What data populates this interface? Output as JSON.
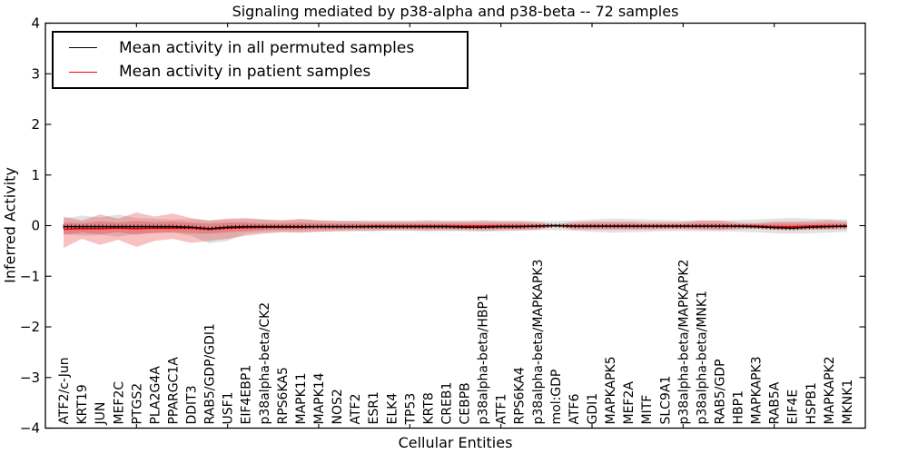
{
  "title": "Signaling mediated by p38-alpha and p38-beta -- 72 samples",
  "xlabel": "Cellular Entities",
  "ylabel": "Inferred Activity",
  "legend": [
    {
      "label": "Mean activity in all permuted samples",
      "color": "#000000"
    },
    {
      "label": "Mean activity in patient samples",
      "color": "#ff0000"
    }
  ],
  "colors": {
    "background": "#ffffff",
    "frame": "#000000",
    "permuted_line": "#000000",
    "patient_line": "#ff0000",
    "permuted_band": "#aaaaaa",
    "patient_band": "#e41a1c"
  },
  "chart_data": {
    "type": "line",
    "title": "Signaling mediated by p38-alpha and p38-beta -- 72 samples",
    "xlabel": "Cellular Entities",
    "ylabel": "Inferred Activity",
    "ylim": [
      -4,
      4
    ],
    "xlim": [
      0,
      45
    ],
    "yticks": [
      4,
      3,
      2,
      1,
      0,
      -1,
      -2,
      -3,
      -4
    ],
    "xtick_step": 5,
    "grid": false,
    "legend_position": "upper left",
    "categories": [
      "ATF2/c-Jun",
      "KRT19",
      "JUN",
      "MEF2C",
      "PTGS2",
      "PLA2G4A",
      "PPARGC1A",
      "DDIT3",
      "RAB5/GDP/GDI1",
      "USF1",
      "EIF4EBP1",
      "p38alpha-beta/CK2",
      "RPS6KA5",
      "MAPK11",
      "MAPK14",
      "NOS2",
      "ATF2",
      "ESR1",
      "ELK4",
      "TP53",
      "KRT8",
      "CREB1",
      "CEBPB",
      "p38alpha-beta/HBP1",
      "ATF1",
      "RPS6KA4",
      "p38alpha-beta/MAPKAPK3",
      "mol:GDP",
      "ATF6",
      "GDI1",
      "MAPKAPK5",
      "MEF2A",
      "MITF",
      "SLC9A1",
      "p38alpha-beta/MAPKAPK2",
      "p38alpha-beta/MNK1",
      "RAB5/GDP",
      "HBP1",
      "MAPKAPK3",
      "RAB5A",
      "EIF4E",
      "HSPB1",
      "MAPKAPK2",
      "MKNK1"
    ],
    "series": [
      {
        "name": "Mean activity in all permuted samples",
        "color": "#000000",
        "style": "solid_with_tick_markers",
        "values": [
          -0.02,
          -0.02,
          -0.02,
          -0.02,
          -0.02,
          -0.02,
          -0.02,
          -0.03,
          -0.06,
          -0.03,
          -0.02,
          -0.02,
          -0.02,
          -0.02,
          -0.02,
          -0.02,
          -0.02,
          -0.02,
          -0.02,
          -0.02,
          -0.02,
          -0.02,
          -0.03,
          -0.03,
          -0.02,
          -0.02,
          -0.01,
          0.0,
          -0.01,
          -0.01,
          -0.01,
          -0.01,
          -0.01,
          -0.01,
          -0.01,
          -0.01,
          -0.01,
          -0.01,
          -0.02,
          -0.04,
          -0.05,
          -0.03,
          -0.02,
          -0.01
        ]
      },
      {
        "name": "Mean activity in patient samples",
        "color": "#ff0000",
        "style": "solid",
        "values": [
          -0.07,
          -0.06,
          -0.06,
          -0.05,
          -0.06,
          -0.05,
          -0.05,
          -0.05,
          -0.07,
          -0.05,
          -0.04,
          -0.03,
          -0.03,
          -0.03,
          -0.02,
          -0.02,
          -0.02,
          -0.01,
          -0.01,
          -0.01,
          -0.01,
          -0.01,
          -0.01,
          -0.01,
          -0.01,
          -0.01,
          -0.01,
          0.0,
          -0.01,
          -0.01,
          -0.01,
          -0.01,
          -0.01,
          -0.01,
          -0.01,
          -0.01,
          -0.01,
          -0.01,
          -0.01,
          -0.02,
          -0.02,
          -0.01,
          -0.01,
          -0.01
        ]
      }
    ],
    "bands": [
      {
        "name": "permuted samples range",
        "color": "#aaaaaa",
        "opacity": 0.35,
        "upper": [
          0.14,
          0.2,
          0.16,
          0.22,
          0.15,
          0.14,
          0.12,
          0.13,
          0.1,
          0.12,
          0.13,
          0.12,
          0.11,
          0.13,
          0.11,
          0.1,
          0.1,
          0.1,
          0.1,
          0.1,
          0.11,
          0.1,
          0.1,
          0.11,
          0.1,
          0.1,
          0.09,
          0.09,
          0.1,
          0.12,
          0.14,
          0.13,
          0.12,
          0.11,
          0.1,
          0.11,
          0.1,
          0.11,
          0.12,
          0.14,
          0.15,
          0.14,
          0.13,
          0.12
        ],
        "lower": [
          -0.16,
          -0.2,
          -0.18,
          -0.22,
          -0.16,
          -0.15,
          -0.14,
          -0.2,
          -0.35,
          -0.3,
          -0.16,
          -0.13,
          -0.12,
          -0.13,
          -0.12,
          -0.11,
          -0.11,
          -0.11,
          -0.1,
          -0.1,
          -0.11,
          -0.11,
          -0.11,
          -0.12,
          -0.11,
          -0.1,
          -0.09,
          -0.09,
          -0.1,
          -0.12,
          -0.14,
          -0.13,
          -0.12,
          -0.11,
          -0.11,
          -0.11,
          -0.11,
          -0.12,
          -0.13,
          -0.15,
          -0.16,
          -0.15,
          -0.14,
          -0.12
        ]
      },
      {
        "name": "patient samples outer range",
        "color": "#e41a1c",
        "opacity": 0.27,
        "upper": [
          0.18,
          0.1,
          0.22,
          0.14,
          0.26,
          0.18,
          0.24,
          0.15,
          0.1,
          0.14,
          0.15,
          0.12,
          0.1,
          0.13,
          0.1,
          0.09,
          0.09,
          0.08,
          0.08,
          0.08,
          0.09,
          0.08,
          0.08,
          0.09,
          0.08,
          0.08,
          0.07,
          0.02,
          0.07,
          0.08,
          0.08,
          0.08,
          0.07,
          0.07,
          0.07,
          0.1,
          0.1,
          0.06,
          0.05,
          0.08,
          0.08,
          0.09,
          0.11,
          0.08
        ],
        "lower": [
          -0.44,
          -0.26,
          -0.38,
          -0.28,
          -0.42,
          -0.3,
          -0.26,
          -0.34,
          -0.3,
          -0.26,
          -0.2,
          -0.16,
          -0.13,
          -0.14,
          -0.12,
          -0.11,
          -0.1,
          -0.1,
          -0.09,
          -0.09,
          -0.1,
          -0.09,
          -0.09,
          -0.1,
          -0.09,
          -0.09,
          -0.08,
          -0.02,
          -0.08,
          -0.08,
          -0.08,
          -0.08,
          -0.08,
          -0.07,
          -0.07,
          -0.08,
          -0.09,
          -0.07,
          -0.06,
          -0.08,
          -0.09,
          -0.08,
          -0.08,
          -0.07
        ]
      },
      {
        "name": "patient samples inner range",
        "color": "#e41a1c",
        "opacity": 0.27,
        "upper": [
          0.06,
          0.05,
          0.08,
          0.06,
          0.09,
          0.07,
          0.08,
          0.06,
          0.04,
          0.06,
          0.06,
          0.05,
          0.05,
          0.06,
          0.05,
          0.04,
          0.04,
          0.04,
          0.04,
          0.04,
          0.04,
          0.04,
          0.04,
          0.04,
          0.04,
          0.04,
          0.03,
          0.01,
          0.03,
          0.04,
          0.04,
          0.04,
          0.03,
          0.03,
          0.03,
          0.05,
          0.05,
          0.03,
          0.03,
          0.04,
          0.04,
          0.04,
          0.05,
          0.04
        ],
        "lower": [
          -0.18,
          -0.14,
          -0.17,
          -0.13,
          -0.18,
          -0.14,
          -0.13,
          -0.15,
          -0.16,
          -0.13,
          -0.11,
          -0.09,
          -0.08,
          -0.08,
          -0.07,
          -0.07,
          -0.06,
          -0.06,
          -0.06,
          -0.06,
          -0.06,
          -0.06,
          -0.06,
          -0.06,
          -0.06,
          -0.06,
          -0.05,
          -0.01,
          -0.05,
          -0.05,
          -0.05,
          -0.05,
          -0.05,
          -0.05,
          -0.05,
          -0.05,
          -0.06,
          -0.05,
          -0.04,
          -0.06,
          -0.07,
          -0.06,
          -0.05,
          -0.05
        ]
      }
    ]
  }
}
